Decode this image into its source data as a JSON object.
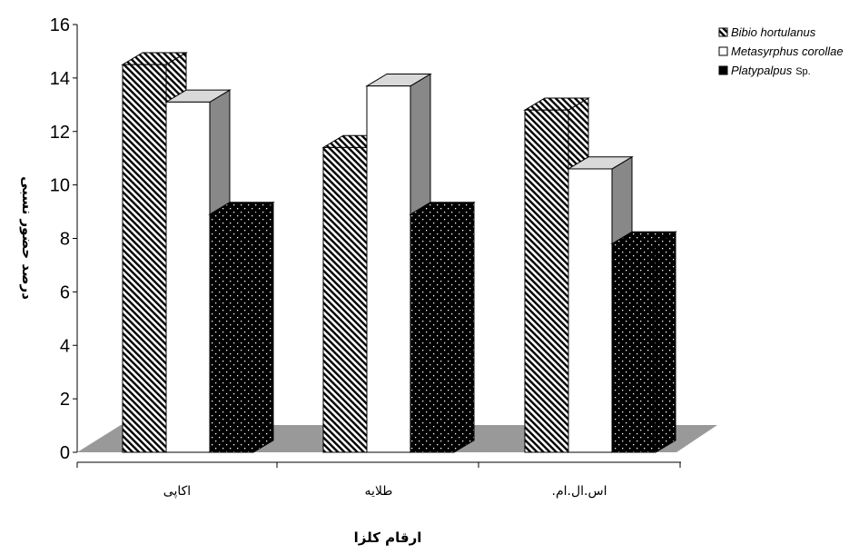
{
  "chart_data": {
    "type": "bar",
    "style": "3d-clustered-column",
    "title": "",
    "xlabel": "ارقام کلزا",
    "ylabel": "درصد حضور نسبی",
    "categories": [
      "اکاپی",
      "طلایه",
      "اس.ال.ام."
    ],
    "ylim": [
      0,
      16
    ],
    "yticks": [
      "0",
      "2",
      "4",
      "6",
      "8",
      "10",
      "12",
      "14",
      "16"
    ],
    "grid": false,
    "legend_position": "top-right",
    "series": [
      {
        "name": "Bibio hortulanus",
        "name_suffix": "",
        "pattern": "diagonal-hatch",
        "color": "#000000",
        "values": [
          14.5,
          11.4,
          12.8
        ]
      },
      {
        "name": "Metasyrphus corollae",
        "name_suffix": "",
        "pattern": "solid",
        "color": "#ffffff",
        "values": [
          13.1,
          13.7,
          10.6
        ]
      },
      {
        "name": "Platypalpus",
        "name_suffix": "Sp.",
        "pattern": "dotted-black",
        "color": "#000000",
        "values": [
          8.9,
          8.9,
          7.8
        ]
      }
    ],
    "floor_color": "#999999",
    "side_color": "#888888"
  }
}
